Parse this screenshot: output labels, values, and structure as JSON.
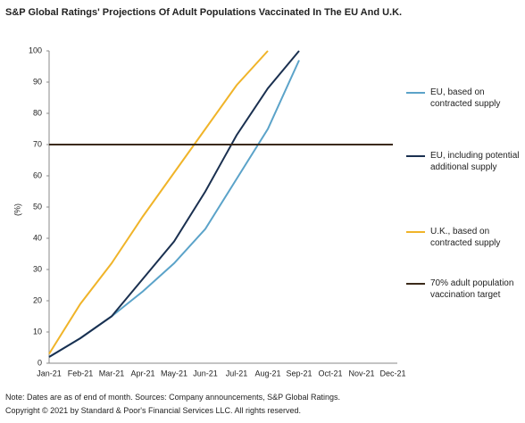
{
  "chart_data": {
    "type": "line",
    "title": "S&P Global Ratings' Projections Of Adult Populations Vaccinated In The EU And U.K.",
    "y_label": "(%)",
    "categories": [
      "Jan-21",
      "Feb-21",
      "Mar-21",
      "Apr-21",
      "May-21",
      "Jun-21",
      "Jul-21",
      "Aug-21",
      "Sep-21",
      "Oct-21",
      "Nov-21",
      "Dec-21"
    ],
    "series": [
      {
        "name": "EU, based on contracted supply",
        "color": "#5ba3c9",
        "values": [
          2,
          8,
          15,
          23,
          32,
          43,
          59,
          75,
          97,
          null,
          null,
          null
        ]
      },
      {
        "name": "EU, including potential additional supply",
        "color": "#1a3050",
        "values": [
          2,
          8,
          15,
          27,
          39,
          55,
          73,
          88,
          100,
          null,
          null,
          null
        ]
      },
      {
        "name": "U.K., based on contracted supply",
        "color": "#f0b429",
        "values": [
          3,
          19,
          32,
          47,
          61,
          75,
          89,
          100,
          null,
          null,
          null,
          null
        ]
      },
      {
        "name": "70% adult population vaccination target",
        "color": "#3b2a1a",
        "values": [
          70,
          70,
          70,
          70,
          70,
          70,
          70,
          70,
          70,
          70,
          70,
          70
        ]
      }
    ],
    "ylim": [
      0,
      100
    ],
    "yticks": [
      0,
      10,
      20,
      30,
      40,
      50,
      60,
      70,
      80,
      90,
      100
    ],
    "grid": false,
    "legend": "right",
    "note": "Note: Dates are as of end of month. Sources: Company announcements, S&P Global Ratings.",
    "copyright": "Copyright © 2021 by Standard & Poor's Financial Services LLC. All rights reserved."
  }
}
